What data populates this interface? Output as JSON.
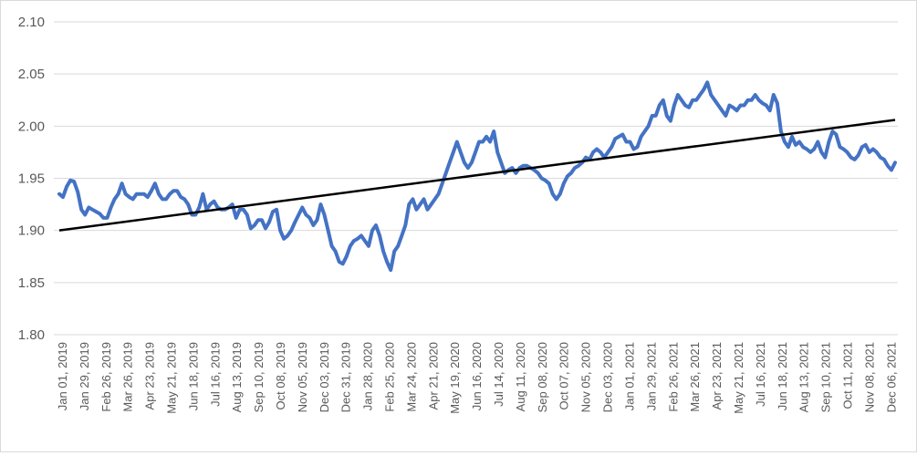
{
  "chart_data": {
    "type": "line",
    "title": "",
    "xlabel": "",
    "ylabel": "",
    "ylim": [
      1.8,
      2.1
    ],
    "yticks": [
      "1.80",
      "1.85",
      "1.90",
      "1.95",
      "2.00",
      "2.05",
      "2.10"
    ],
    "grid": true,
    "xticks": [
      "Jan 01, 2019",
      "Jan 29, 2019",
      "Feb 26, 2019",
      "Mar 26, 2019",
      "Apr 23, 2019",
      "May 21, 2019",
      "Jun 18, 2019",
      "Jul 16, 2019",
      "Aug 13, 2019",
      "Sep 10, 2019",
      "Oct 08, 2019",
      "Nov 05, 2019",
      "Dec 03, 2019",
      "Dec 31, 2019",
      "Jan 28, 2020",
      "Feb 25, 2020",
      "Mar 24, 2020",
      "Apr 21, 2020",
      "May 19, 2020",
      "Jun 16, 2020",
      "Jul 14, 2020",
      "Aug 11, 2020",
      "Sep 08, 2020",
      "Oct 07, 2020",
      "Nov 05, 2020",
      "Dec 03, 2020",
      "Jan 01, 2021",
      "Jan 29, 2021",
      "Feb 26, 2021",
      "Mar 26, 2021",
      "Apr 23, 2021",
      "May 21, 2021",
      "Jul 16, 2021",
      "Jun 18, 2021",
      "Aug 13, 2021",
      "Sep 10, 2021",
      "Oct 11, 2021",
      "Nov 08, 2021",
      "Dec 06, 2021"
    ],
    "colors": {
      "series": "#4472C4",
      "trend": "#000000",
      "grid": "#d9d9d9"
    },
    "series": [
      {
        "values": [
          1.935,
          1.932,
          1.942,
          1.948,
          1.947,
          1.937,
          1.92,
          1.915,
          1.922,
          1.92,
          1.918,
          1.916,
          1.912,
          1.912,
          1.922,
          1.93,
          1.935,
          1.945,
          1.935,
          1.932,
          1.93,
          1.935,
          1.935,
          1.935,
          1.932,
          1.938,
          1.945,
          1.935,
          1.93,
          1.93,
          1.935,
          1.938,
          1.938,
          1.932,
          1.93,
          1.925,
          1.915,
          1.915,
          1.922,
          1.935,
          1.92,
          1.925,
          1.928,
          1.922,
          1.92,
          1.92,
          1.922,
          1.925,
          1.912,
          1.92,
          1.92,
          1.915,
          1.902,
          1.905,
          1.91,
          1.91,
          1.902,
          1.908,
          1.918,
          1.92,
          1.9,
          1.892,
          1.895,
          1.9,
          1.908,
          1.915,
          1.922,
          1.915,
          1.912,
          1.905,
          1.91,
          1.925,
          1.915,
          1.9,
          1.885,
          1.88,
          1.87,
          1.868,
          1.875,
          1.885,
          1.89,
          1.892,
          1.895,
          1.89,
          1.885,
          1.9,
          1.905,
          1.895,
          1.88,
          1.87,
          1.862,
          1.88,
          1.885,
          1.895,
          1.905,
          1.925,
          1.93,
          1.92,
          1.925,
          1.93,
          1.92,
          1.925,
          1.93,
          1.935,
          1.945,
          1.955,
          1.965,
          1.975,
          1.985,
          1.975,
          1.965,
          1.96,
          1.965,
          1.975,
          1.985,
          1.985,
          1.99,
          1.985,
          1.995,
          1.975,
          1.965,
          1.955,
          1.958,
          1.96,
          1.955,
          1.96,
          1.962,
          1.962,
          1.96,
          1.958,
          1.955,
          1.95,
          1.948,
          1.945,
          1.935,
          1.93,
          1.935,
          1.945,
          1.952,
          1.955,
          1.96,
          1.962,
          1.965,
          1.97,
          1.968,
          1.975,
          1.978,
          1.975,
          1.97,
          1.975,
          1.98,
          1.988,
          1.99,
          1.992,
          1.985,
          1.985,
          1.978,
          1.98,
          1.99,
          1.995,
          2.0,
          2.01,
          2.01,
          2.02,
          2.025,
          2.01,
          2.005,
          2.02,
          2.03,
          2.025,
          2.02,
          2.018,
          2.025,
          2.025,
          2.03,
          2.035,
          2.042,
          2.03,
          2.025,
          2.02,
          2.015,
          2.01,
          2.02,
          2.018,
          2.015,
          2.02,
          2.02,
          2.025,
          2.025,
          2.03,
          2.025,
          2.022,
          2.02,
          2.015,
          2.03,
          2.022,
          1.995,
          1.985,
          1.98,
          1.99,
          1.982,
          1.985,
          1.98,
          1.978,
          1.975,
          1.978,
          1.985,
          1.975,
          1.97,
          1.985,
          1.995,
          1.992,
          1.98,
          1.978,
          1.975,
          1.97,
          1.968,
          1.972,
          1.98,
          1.982,
          1.975,
          1.978,
          1.975,
          1.97,
          1.968,
          1.962,
          1.958,
          1.965
        ]
      },
      {
        "values": [
          1.9,
          2.006
        ]
      }
    ]
  }
}
